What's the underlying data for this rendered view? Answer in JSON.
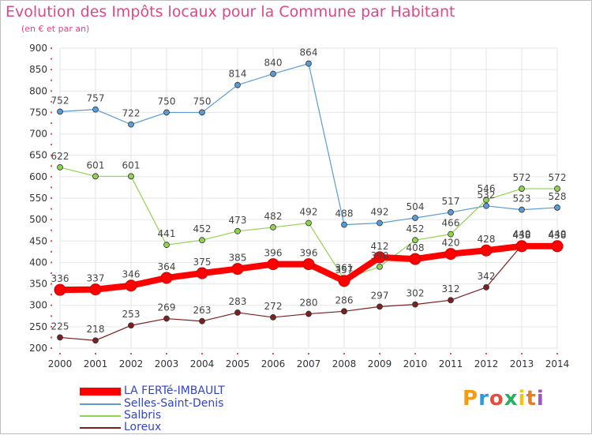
{
  "title": "Evolution des Impôts locaux pour la Commune par Habitant",
  "subtitle": "(en € et par an)",
  "logo": {
    "letters": [
      "P",
      "r",
      "o",
      "x",
      "i",
      "t",
      "i"
    ],
    "colors": [
      "#f39c12",
      "#3498db",
      "#e74c3c",
      "#27ae60",
      "#f1c40f",
      "#e67e22",
      "#9b59b6"
    ]
  },
  "chart_data": {
    "type": "line",
    "x": [
      "2000",
      "2001",
      "2002",
      "2003",
      "2004",
      "2005",
      "2006",
      "2007",
      "2008",
      "2009",
      "2010",
      "2011",
      "2012",
      "2013",
      "2014"
    ],
    "ylim": [
      200,
      900
    ],
    "yticks": [
      "200",
      "250",
      "300",
      "350",
      "400",
      "450",
      "500",
      "550",
      "600",
      "650",
      "700",
      "750",
      "800",
      "850",
      "900"
    ],
    "grid": true,
    "legend_position": "bottom-left",
    "series": [
      {
        "name": "LA FERTé-IMBAULT",
        "color": "#ff0000",
        "thick": true,
        "values": [
          336,
          337,
          346,
          364,
          375,
          385,
          396,
          396,
          357,
          412,
          408,
          420,
          428,
          438,
          438
        ],
        "labels": [
          "336",
          "337",
          "346",
          "364",
          "375",
          "385",
          "396",
          "396",
          "357",
          "412",
          "408",
          "420",
          "428",
          "438",
          "438"
        ]
      },
      {
        "name": "Selles-Saint-Denis",
        "color": "#5b9bd5",
        "thick": false,
        "values": [
          752,
          757,
          722,
          750,
          750,
          814,
          840,
          864,
          488,
          492,
          504,
          517,
          532,
          523,
          528
        ],
        "labels": [
          "752",
          "757",
          "722",
          "750",
          "750",
          "814",
          "840",
          "864",
          "488",
          "492",
          "504",
          "517",
          "532",
          "523",
          "528"
        ]
      },
      {
        "name": "Salbris",
        "color": "#8fd34f",
        "thick": false,
        "values": [
          622,
          601,
          601,
          441,
          452,
          473,
          482,
          492,
          361,
          390,
          452,
          466,
          546,
          572,
          572
        ],
        "labels": [
          "622",
          "601",
          "601",
          "441",
          "452",
          "473",
          "482",
          "492",
          "361",
          "390",
          "452",
          "466",
          "546",
          "572",
          "572"
        ]
      },
      {
        "name": "Loreux",
        "color": "#7b2020",
        "thick": false,
        "values": [
          225,
          218,
          253,
          269,
          263,
          283,
          272,
          280,
          286,
          297,
          302,
          312,
          342,
          440,
          440
        ],
        "labels": [
          "225",
          "218",
          "253",
          "269",
          "263",
          "283",
          "272",
          "280",
          "286",
          "297",
          "302",
          "312",
          "342",
          "440",
          "440"
        ]
      }
    ]
  }
}
